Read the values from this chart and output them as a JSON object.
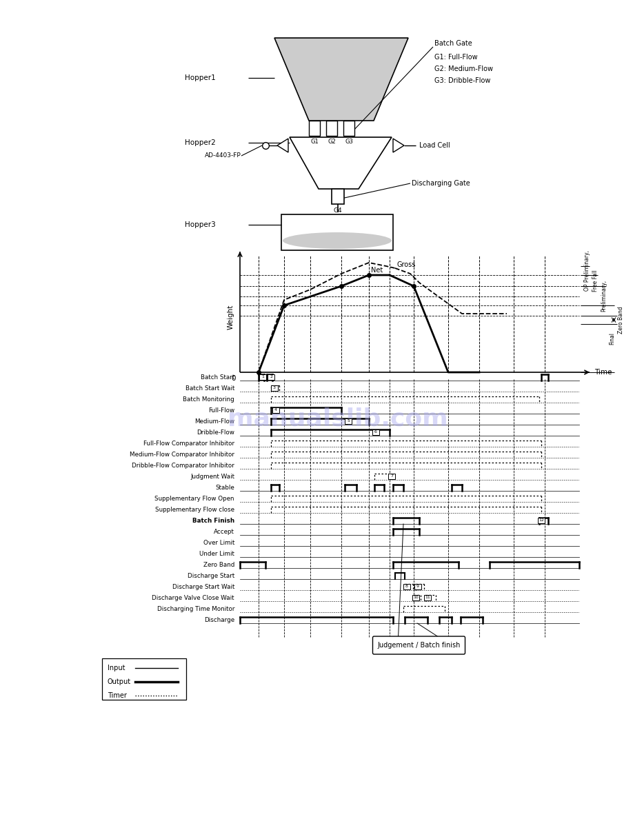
{
  "bg_color": "#ffffff",
  "timing_rows": [
    "Batch Start",
    "Batch Start Wait",
    "Batch Monitoring",
    "Full-Flow",
    "Medium-Flow",
    "Dribble-Flow",
    "Full-Flow Comparator Inhibitor",
    "Medium-Flow Comparator Inhibitor",
    "Dribble-Flow Comparator Inhibitor",
    "Judgment Wait",
    "Stable",
    "Supplementary Flow Open",
    "Supplementary Flow close",
    "Batch Finish",
    "Accept",
    "Over Limit",
    "Under Limit",
    "Zero Band",
    "Discharge Start",
    "Discharge Start Wait",
    "Discharge Valve Close Wait",
    "Discharging Time Monitor",
    "Discharge"
  ],
  "judgement_label": "Judgement / Batch finish"
}
